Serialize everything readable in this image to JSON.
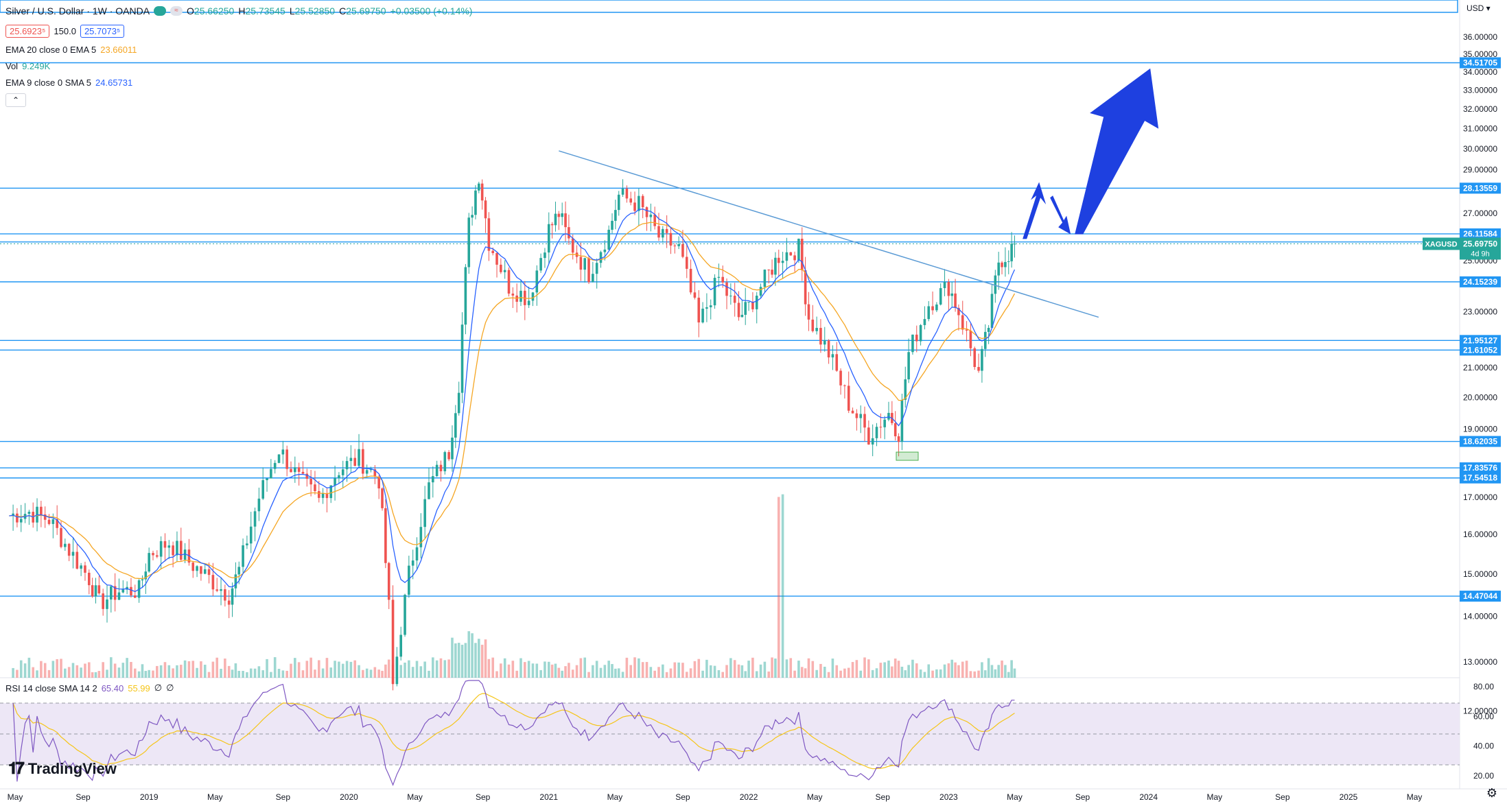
{
  "header": {
    "title": "Silver / U.S. Dollar · 1W · OANDA",
    "ohlc": {
      "o": "25.66250",
      "h": "25.73545",
      "l": "25.52850",
      "c": "25.69750",
      "chg": "+0.03500 (+0.14%)"
    },
    "bid": "25.6923⁵",
    "spread": "150.0",
    "ask": "25.7073⁵"
  },
  "indicators": {
    "ema20": {
      "label": "EMA 20 close 0 EMA 5",
      "value": "23.66011",
      "color": "#f5a623"
    },
    "vol": {
      "label": "Vol",
      "value": "9.249K",
      "color": "#26a69a"
    },
    "ema9": {
      "label": "EMA 9 close 0 SMA 5",
      "value": "24.65731",
      "color": "#2962ff"
    },
    "rsi": {
      "label": "RSI 14 close SMA 14 2",
      "value": "65.40",
      "ma_value": "55.99",
      "extra1": "∅",
      "extra2": "∅",
      "color": "#7e57c2"
    }
  },
  "currency": "USD",
  "symbol_tag": "XAGUSD",
  "countdown": "4d 9h",
  "last_price_label": "25.69750",
  "logo_text": "TradingView",
  "colors": {
    "up": "#26a69a",
    "down": "#ef5350",
    "hline": "#2196f3",
    "label_bg": "#2196f3",
    "arrow": "#1e40e0",
    "trend": "#5b9bd5",
    "rsi_band": "#ede7f6"
  },
  "chart_data": {
    "type": "candlestick",
    "title": "Silver / U.S. Dollar · 1W · OANDA",
    "y_axis_ticks": [
      "36.00000",
      "35.00000",
      "34.00000",
      "33.00000",
      "32.00000",
      "31.00000",
      "30.00000",
      "29.00000",
      "27.00000",
      "25.00000",
      "23.00000",
      "21.00000",
      "20.00000",
      "19.00000",
      "17.00000",
      "16.00000",
      "15.00000",
      "14.00000",
      "13.00000",
      "12.00000"
    ],
    "x_axis_ticks": [
      "May",
      "Sep",
      "2019",
      "May",
      "Sep",
      "2020",
      "May",
      "Sep",
      "2021",
      "May",
      "Sep",
      "2022",
      "May",
      "Sep",
      "2023",
      "May",
      "Sep",
      "2024",
      "May",
      "Sep",
      "2025",
      "May"
    ],
    "rsi_ticks": [
      "80.00",
      "60.00",
      "40.00",
      "20.00"
    ],
    "horizontal_levels": [
      "34.51705",
      "28.13559",
      "26.11584",
      "25.77723",
      "24.15239",
      "21.95127",
      "21.61052",
      "18.62035",
      "17.83576",
      "17.54518",
      "14.47044"
    ],
    "series_close_path": [
      [
        2018.3,
        16.5
      ],
      [
        2018.4,
        16.6
      ],
      [
        2018.5,
        16.4
      ],
      [
        2018.6,
        15.6
      ],
      [
        2018.7,
        14.9
      ],
      [
        2018.75,
        14.3
      ],
      [
        2018.85,
        14.6
      ],
      [
        2018.95,
        14.6
      ],
      [
        2019.0,
        15.5
      ],
      [
        2019.1,
        15.8
      ],
      [
        2019.2,
        15.3
      ],
      [
        2019.3,
        14.9
      ],
      [
        2019.4,
        14.5
      ],
      [
        2019.45,
        15.1
      ],
      [
        2019.55,
        17.0
      ],
      [
        2019.65,
        18.4
      ],
      [
        2019.75,
        17.5
      ],
      [
        2019.85,
        16.9
      ],
      [
        2019.95,
        17.8
      ],
      [
        2020.05,
        18.1
      ],
      [
        2020.15,
        17.5
      ],
      [
        2020.2,
        14.2
      ],
      [
        2020.22,
        12.5
      ],
      [
        2020.3,
        15.0
      ],
      [
        2020.4,
        17.3
      ],
      [
        2020.5,
        18.3
      ],
      [
        2020.55,
        20.5
      ],
      [
        2020.6,
        26.5
      ],
      [
        2020.65,
        28.8
      ],
      [
        2020.7,
        25.8
      ],
      [
        2020.8,
        24.0
      ],
      [
        2020.9,
        23.5
      ],
      [
        2021.0,
        26.3
      ],
      [
        2021.05,
        27.0
      ],
      [
        2021.1,
        25.8
      ],
      [
        2021.2,
        24.5
      ],
      [
        2021.3,
        26.2
      ],
      [
        2021.35,
        27.8
      ],
      [
        2021.45,
        27.4
      ],
      [
        2021.55,
        26.0
      ],
      [
        2021.65,
        25.5
      ],
      [
        2021.75,
        22.5
      ],
      [
        2021.85,
        24.3
      ],
      [
        2021.95,
        22.8
      ],
      [
        2022.0,
        23.2
      ],
      [
        2022.1,
        24.5
      ],
      [
        2022.15,
        25.2
      ],
      [
        2022.25,
        25.5
      ],
      [
        2022.3,
        22.8
      ],
      [
        2022.4,
        21.5
      ],
      [
        2022.5,
        19.8
      ],
      [
        2022.6,
        18.8
      ],
      [
        2022.7,
        19.5
      ],
      [
        2022.75,
        18.9
      ],
      [
        2022.8,
        21.5
      ],
      [
        2022.9,
        23.3
      ],
      [
        2023.0,
        24.0
      ],
      [
        2023.05,
        23.0
      ],
      [
        2023.15,
        20.8
      ],
      [
        2023.2,
        22.5
      ],
      [
        2023.25,
        25.0
      ],
      [
        2023.3,
        25.3
      ],
      [
        2023.33,
        25.7
      ]
    ],
    "trendline": {
      "from": [
        2021.05,
        29.9
      ],
      "to": [
        2023.75,
        22.8
      ]
    },
    "annotation_arrows": [
      "up toward 28.13559",
      "pullback toward 26.11584",
      "up toward 34.51705"
    ]
  }
}
